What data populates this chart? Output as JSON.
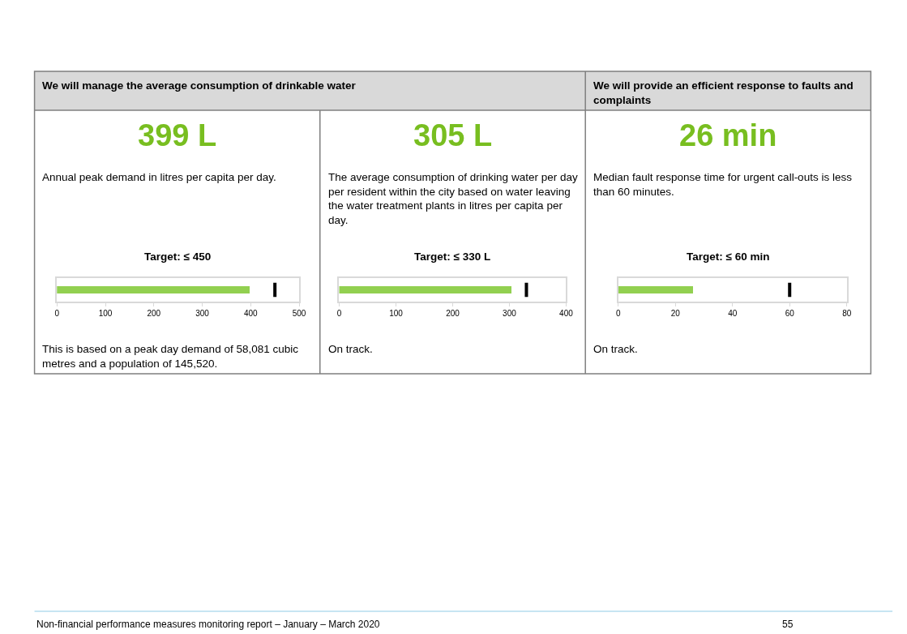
{
  "chart_data": [
    {
      "type": "bar",
      "orientation": "horizontal",
      "title": "We will manage the average consumption of drinkable water",
      "subtitle": "399 L",
      "categories": [
        null
      ],
      "values": [
        399
      ],
      "color": "#92d050",
      "xlim": [
        0,
        500
      ],
      "xticks": [
        0,
        100,
        200,
        300,
        400,
        500
      ],
      "tick_labels": "x",
      "ref_lines": [
        {
          "axis": "x",
          "value": 450,
          "label": "Target: ≤ 450",
          "color": "#000000"
        }
      ],
      "annotations": [
        "Annual peak demand in litres per capita per day.",
        "This is based on a peak day demand of 58,081 cubic metres and a population of 145,520.",
        "Non-financial performance measures monitoring report – January – March 2020",
        "55"
      ]
    },
    {
      "type": "bar",
      "orientation": "horizontal",
      "subtitle": "305 L",
      "categories": [
        null
      ],
      "values": [
        305
      ],
      "color": "#92d050",
      "xlim": [
        0,
        400
      ],
      "xticks": [
        0,
        100,
        200,
        300,
        400
      ],
      "tick_labels": "x",
      "ref_lines": [
        {
          "axis": "x",
          "value": 330,
          "label": "Target: ≤ 330 L",
          "color": "#000000"
        }
      ],
      "annotations": [
        "The average consumption of drinking water per day per resident within the city based on water leaving the water treatment plants in litres per capita per day.",
        "On track."
      ]
    },
    {
      "type": "bar",
      "orientation": "horizontal",
      "title": "We will provide an efficient response to faults and complaints",
      "subtitle": "26 min",
      "categories": [
        null
      ],
      "values": [
        26
      ],
      "color": "#92d050",
      "xlim": [
        0,
        80
      ],
      "xticks": [
        0,
        20,
        40,
        60,
        80
      ],
      "tick_labels": "x",
      "ref_lines": [
        {
          "axis": "x",
          "value": 60,
          "label": "Target: ≤ 60 min",
          "color": "#000000"
        }
      ],
      "annotations": [
        "Median fault response time for urgent call-outs is less than 60 minutes.",
        "On track."
      ]
    }
  ]
}
